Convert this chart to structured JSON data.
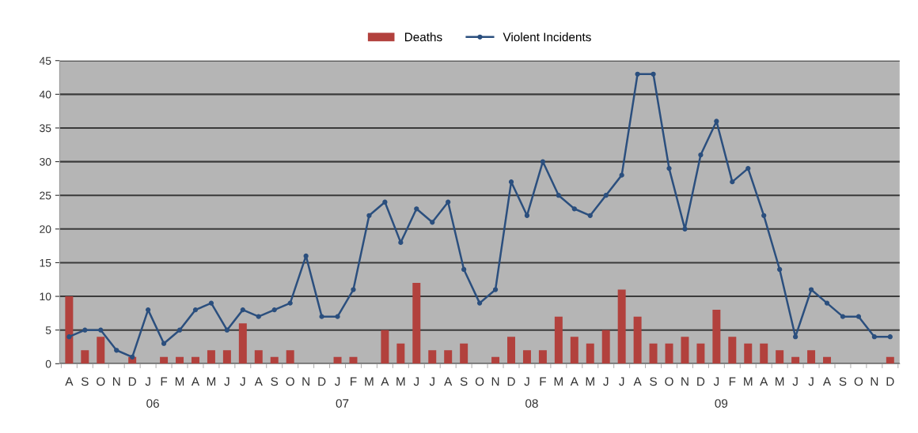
{
  "chart_data": {
    "type": "bar",
    "categories": [
      "A",
      "S",
      "O",
      "N",
      "D",
      "J",
      "F",
      "M",
      "A",
      "M",
      "J",
      "J",
      "A",
      "S",
      "O",
      "N",
      "D",
      "J",
      "F",
      "M",
      "A",
      "M",
      "J",
      "J",
      "A",
      "S",
      "O",
      "N",
      "D",
      "J",
      "F",
      "M",
      "A",
      "M",
      "J",
      "J",
      "A",
      "S",
      "O",
      "N",
      "D",
      "J",
      "F",
      "M",
      "A",
      "M",
      "J",
      "J",
      "A",
      "S",
      "O",
      "N",
      "D"
    ],
    "series": [
      {
        "name": "Deaths",
        "color": "#b2413d",
        "values": [
          10,
          2,
          4,
          0,
          1,
          0,
          1,
          1,
          1,
          2,
          2,
          6,
          2,
          1,
          2,
          0,
          0,
          1,
          1,
          0,
          5,
          3,
          12,
          2,
          2,
          3,
          0,
          1,
          4,
          2,
          2,
          7,
          4,
          3,
          5,
          11,
          7,
          3,
          3,
          4,
          3,
          8,
          4,
          3,
          3,
          2,
          1,
          2,
          1,
          0,
          0,
          0,
          1
        ]
      },
      {
        "name": "Violent Incidents",
        "type": "line",
        "color": "#2b4f7e",
        "marker": "circle",
        "values": [
          4,
          5,
          5,
          2,
          1,
          8,
          3,
          5,
          8,
          9,
          5,
          8,
          7,
          8,
          9,
          16,
          7,
          7,
          11,
          22,
          24,
          18,
          23,
          21,
          24,
          14,
          9,
          11,
          27,
          22,
          30,
          25,
          23,
          22,
          25,
          28,
          43,
          43,
          29,
          20,
          31,
          36,
          27,
          29,
          22,
          14,
          4,
          11,
          9,
          7,
          7,
          4,
          4
        ]
      }
    ],
    "annotations": [
      "06",
      "07",
      "08",
      "09"
    ],
    "ylim": [
      0,
      45
    ],
    "yticks": [
      0,
      5,
      10,
      15,
      20,
      25,
      30,
      35,
      40,
      45
    ],
    "grid": "y",
    "legend": "top"
  }
}
